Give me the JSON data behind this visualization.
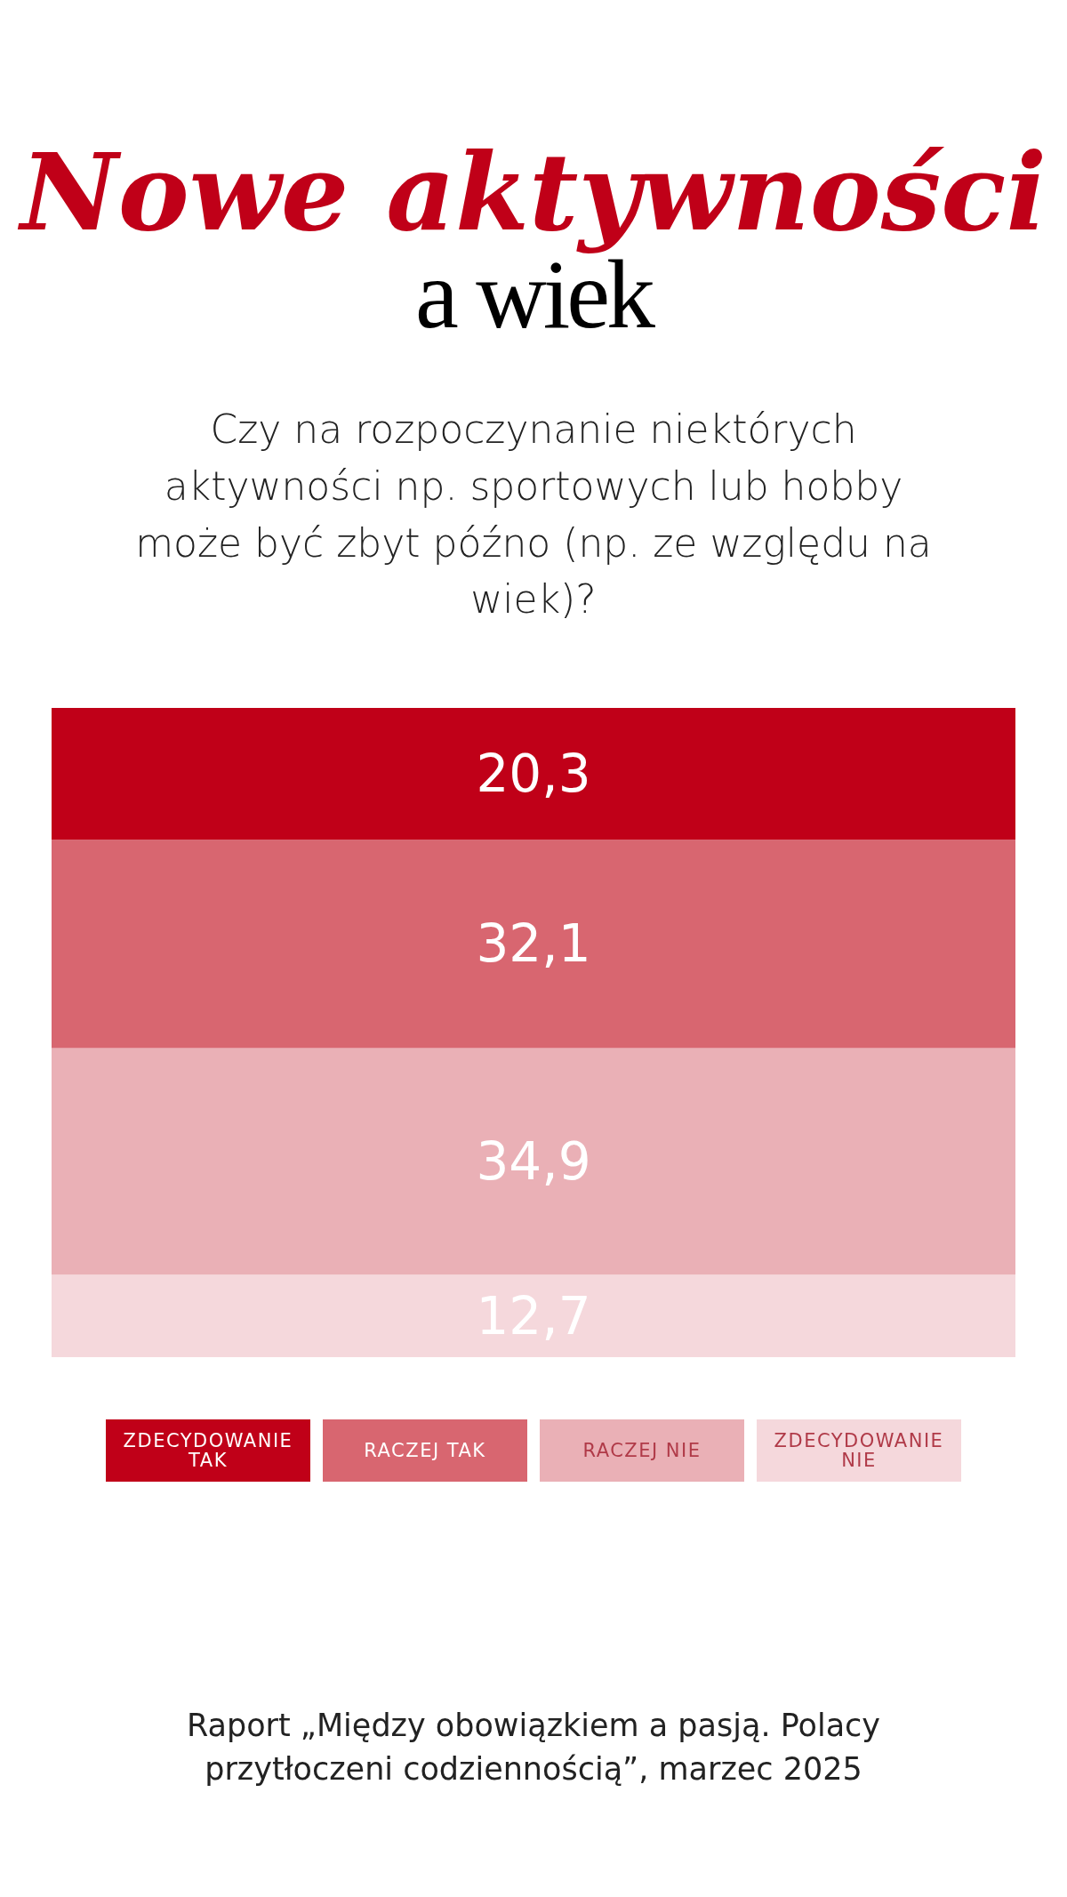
{
  "chart_data": {
    "type": "bar",
    "title": "Nowe aktywności",
    "subtitle": "a wiek",
    "annotations": [
      "Czy na rozpoczynanie niektórych aktywności np. sportowych lub hobby może być zbyt późno (np. ze względu na wiek)?",
      "Raport „Między obowiązkiem a pasją. Polacy przytłoczeni codziennością”, marzec 2025"
    ],
    "categories": [
      null
    ],
    "stacked": true,
    "ylim": [
      0,
      100
    ],
    "tick_labels": false,
    "legend": "bottom",
    "series": [
      {
        "name": "ZDECYDOWANIE NIE",
        "color": "#f5d8dc",
        "values": [
          12.7
        ],
        "value_labels": [
          "12,7"
        ]
      },
      {
        "name": "RACZEJ NIE",
        "color": "#eab0b6",
        "values": [
          34.9
        ],
        "value_labels": [
          "34,9"
        ]
      },
      {
        "name": "RACZEJ TAK",
        "color": "#d86670",
        "values": [
          32.1
        ],
        "value_labels": [
          "32,1"
        ]
      },
      {
        "name": "ZDECYDOWANIE TAK",
        "color": "#c00018",
        "values": [
          20.3
        ],
        "value_labels": [
          "20,3"
        ]
      }
    ]
  }
}
